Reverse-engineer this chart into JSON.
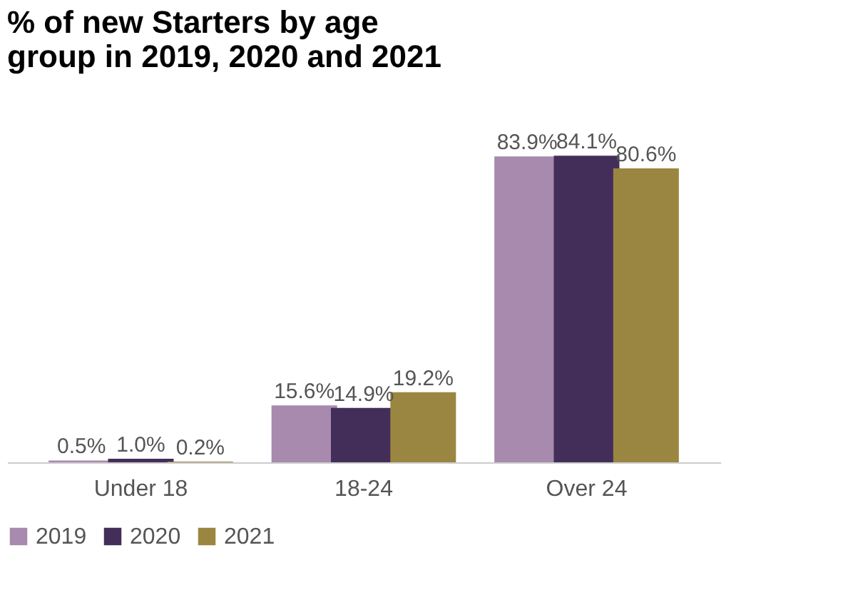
{
  "chart_data": {
    "type": "bar",
    "title": "% of new Starters by age group in 2019, 2020 and 2021",
    "categories": [
      "Under 18",
      "18-24",
      "Over 24"
    ],
    "series": [
      {
        "name": "2019",
        "color": "#a78aae",
        "values": [
          0.5,
          15.6,
          83.9
        ],
        "value_labels": [
          "0.5%",
          "15.6%",
          "83.9%"
        ]
      },
      {
        "name": "2020",
        "color": "#432e5a",
        "values": [
          1.0,
          14.9,
          84.1
        ],
        "value_labels": [
          "1.0%",
          "14.9%",
          "84.1%"
        ]
      },
      {
        "name": "2021",
        "color": "#9a8640",
        "values": [
          0.2,
          19.2,
          80.6
        ],
        "value_labels": [
          "0.2%",
          "19.2%",
          "80.6%"
        ]
      }
    ],
    "legend": "bottom",
    "grid": false
  }
}
